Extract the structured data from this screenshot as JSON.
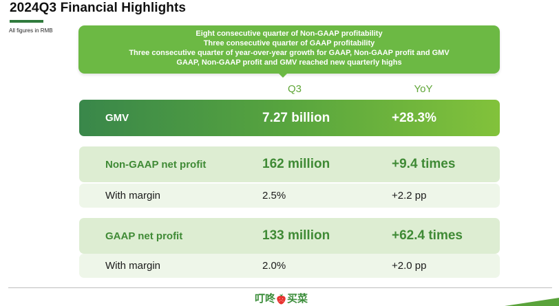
{
  "header": {
    "title": "2024Q3 Financial Highlights",
    "note": "All figures in RMB"
  },
  "banner": {
    "lines": [
      "Eight consecutive quarter of Non-GAAP profitability",
      "Three consecutive quarter of GAAP profitability",
      "Three consecutive quarter of year-over-year growth for GAAP, Non-GAAP profit and GMV",
      "GAAP, Non-GAAP profit and GMV reached new quarterly highs"
    ]
  },
  "columns": {
    "q3": "Q3",
    "yoy": "YoY"
  },
  "rows": {
    "gmv": {
      "label": "GMV",
      "q3": "7.27 billion",
      "yoy": "+28.3%"
    },
    "non_gaap": {
      "label": "Non-GAAP net profit",
      "q3": "162 million",
      "yoy": "+9.4 times"
    },
    "non_gaap_margin": {
      "label": "With margin",
      "q3": "2.5%",
      "yoy": "+2.2 pp"
    },
    "gaap": {
      "label": "GAAP net profit",
      "q3": "133 million",
      "yoy": "+62.4 times"
    },
    "gaap_margin": {
      "label": "With margin",
      "q3": "2.0%",
      "yoy": "+2.0 pp"
    }
  },
  "footer": {
    "logo_left": "叮咚",
    "logo_right": "买菜"
  },
  "colors": {
    "accent_green": "#6cb944",
    "dark_green": "#2f7a3c",
    "text_green": "#3f8a35"
  },
  "icons": {
    "logo_mark": "strawberry-icon"
  }
}
